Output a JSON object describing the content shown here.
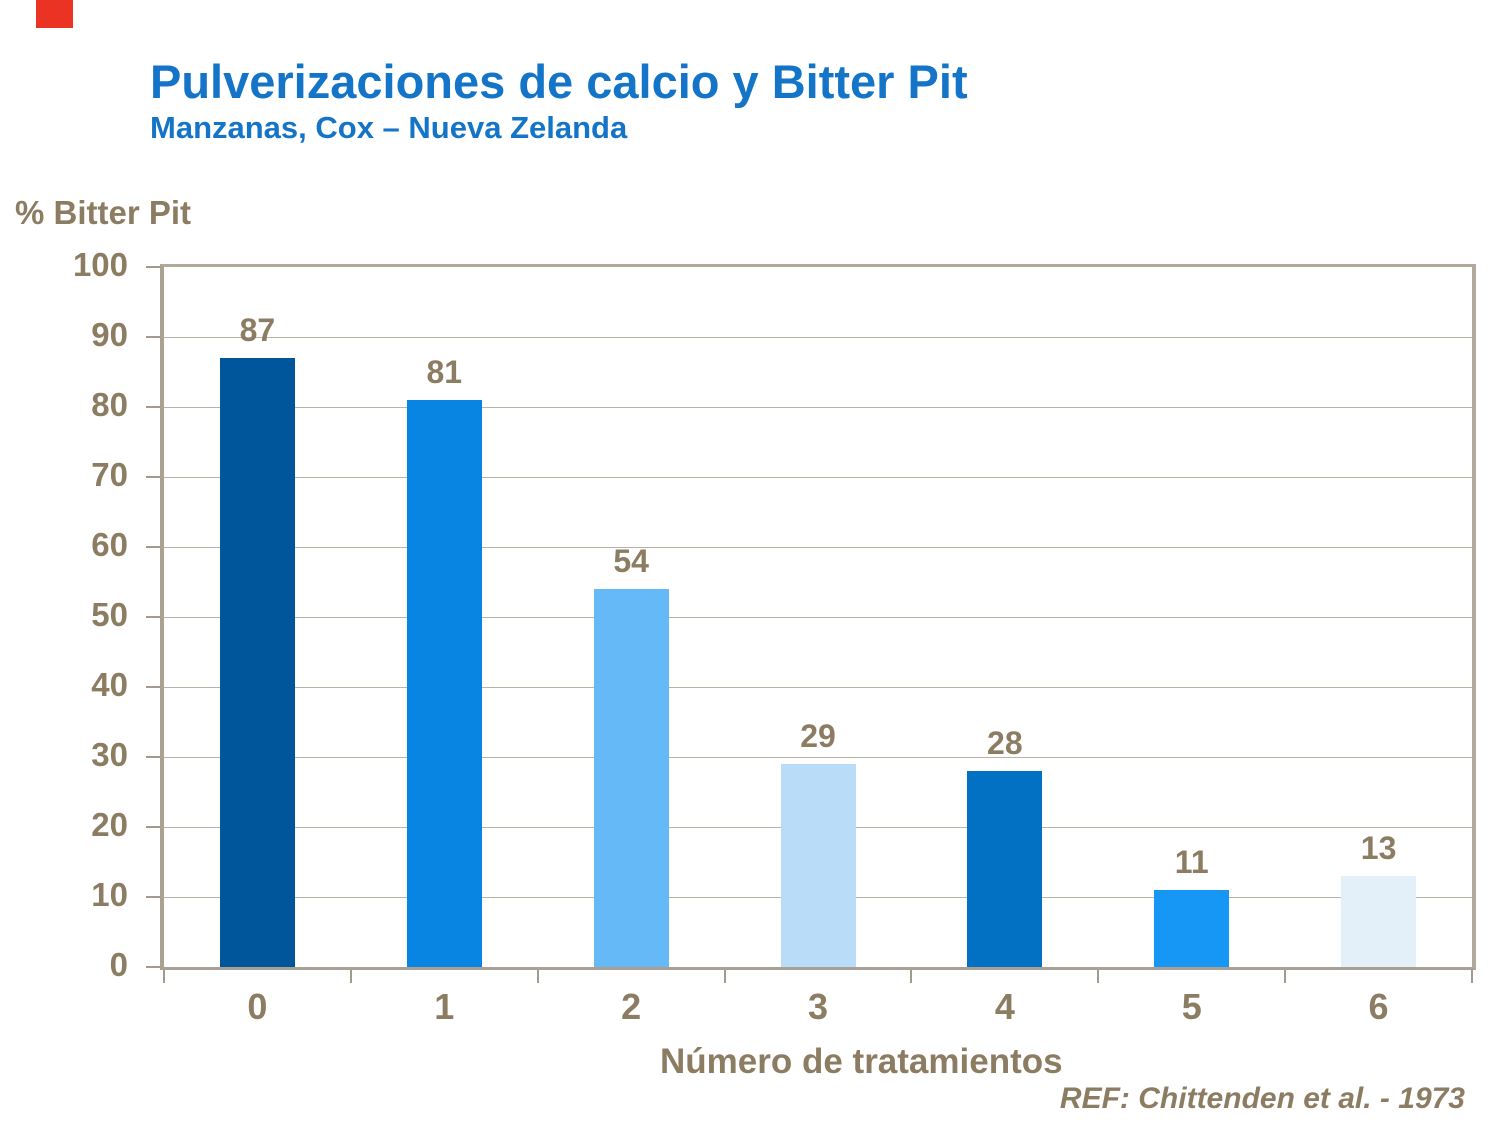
{
  "slide": {
    "title": "Pulverizaciones de calcio y Bitter Pit",
    "subtitle": "Manzanas, Cox – Nueva Zelanda",
    "reference": "REF: Chittenden et al. - 1973"
  },
  "chart_data": {
    "type": "bar",
    "title": "Pulverizaciones de calcio y Bitter Pit",
    "subtitle": "Manzanas, Cox – Nueva Zelanda",
    "categories": [
      "0",
      "1",
      "2",
      "3",
      "4",
      "5",
      "6"
    ],
    "values": [
      87,
      81,
      54,
      29,
      28,
      11,
      13
    ],
    "data_labels": [
      "87",
      "81",
      "54",
      "29",
      "28",
      "11",
      "13"
    ],
    "xlabel": "Número de tratamientos",
    "ylabel": "% Bitter Pit",
    "ylim": [
      0,
      100
    ],
    "ytick_step": 10,
    "yticks": [
      0,
      10,
      20,
      30,
      40,
      50,
      60,
      70,
      80,
      90,
      100
    ],
    "grid": "horizontal",
    "legend": "none",
    "bar_colors": [
      "#00569b",
      "#0885e2",
      "#66b9f7",
      "#b9ddf9",
      "#0271c4",
      "#1697f6",
      "#e3f0fa"
    ]
  },
  "colors": {
    "accent_red": "#ea3323",
    "title_blue": "#1374c8",
    "axis_text_brown": "#8c7c62",
    "gridline": "#bab2a6",
    "plot_border": "#b2a99d"
  }
}
